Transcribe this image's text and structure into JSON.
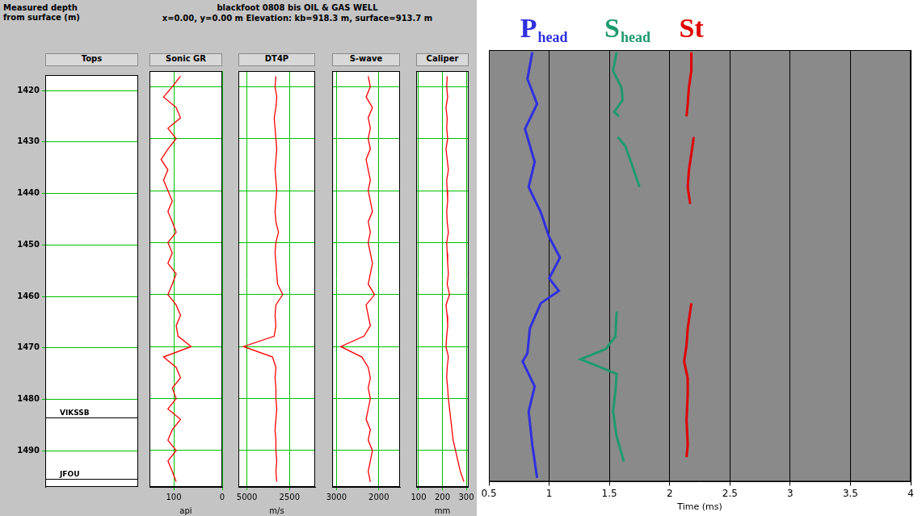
{
  "chart_data": [
    {
      "type": "well_log",
      "y_label": [
        "Measured depth",
        "from surface (m)"
      ],
      "title": "blackfoot 0808 bis OIL & GAS WELL",
      "subtitle": "x=0.00, y=0.00 m Elevation: kb=918.3 m, surface=913.7 m",
      "ylim": [
        1417,
        1497
      ],
      "yticks": [
        1420,
        1430,
        1440,
        1450,
        1460,
        1470,
        1480,
        1490
      ],
      "grid": true,
      "tops": {
        "name": "Tops",
        "labels": [
          "VIKSSB",
          "JFOU"
        ],
        "depths": [
          1483.5,
          1495.5
        ]
      },
      "depth": [
        1418,
        1420,
        1422,
        1424,
        1426,
        1428,
        1430,
        1432,
        1434,
        1436,
        1438,
        1440,
        1442,
        1444,
        1446,
        1448,
        1450,
        1452,
        1454,
        1456,
        1458,
        1460,
        1462,
        1464,
        1466,
        1468,
        1470,
        1472,
        1474,
        1476,
        1478,
        1480,
        1482,
        1484,
        1486,
        1488,
        1490,
        1492,
        1494,
        1496
      ],
      "tracks": [
        {
          "name": "Sonic GR",
          "unit": "api",
          "xlim": [
            150,
            0
          ],
          "xticks": [
            100,
            0
          ],
          "color": "#ff0000",
          "values": [
            86,
            103,
            121,
            95,
            86,
            112,
            95,
            112,
            126,
            112,
            121,
            112,
            103,
            112,
            103,
            95,
            112,
            103,
            112,
            95,
            103,
            112,
            95,
            86,
            95,
            91,
            64,
            121,
            95,
            86,
            103,
            95,
            112,
            86,
            103,
            112,
            95,
            112,
            103,
            95
          ]
        },
        {
          "name": "DT4P",
          "unit": "m/s",
          "xlim": [
            5500,
            1000
          ],
          "xticks": [
            5000,
            2500
          ],
          "color": "#ff0000",
          "values": [
            3300,
            3350,
            3250,
            3300,
            3400,
            3350,
            3300,
            3250,
            3300,
            3350,
            3300,
            3250,
            3300,
            3350,
            3300,
            3150,
            3300,
            3350,
            3300,
            3250,
            3200,
            2900,
            3300,
            3350,
            3300,
            3400,
            5200,
            3500,
            3300,
            3350,
            3300,
            3300,
            3250,
            3300,
            3350,
            3300,
            3300,
            3250,
            3300,
            3250
          ]
        },
        {
          "name": "S-wave",
          "xlim": [
            3100,
            1500
          ],
          "xticks": [
            3000,
            2000
          ],
          "color": "#ff0000",
          "values": [
            2250,
            2200,
            2300,
            2150,
            2250,
            2200,
            2250,
            2200,
            2300,
            2250,
            2200,
            2250,
            2200,
            2150,
            2250,
            2200,
            2250,
            2200,
            2150,
            2200,
            2250,
            2100,
            2300,
            2250,
            2200,
            2350,
            2900,
            2400,
            2250,
            2200,
            2250,
            2200,
            2250,
            2300,
            2200,
            2250,
            2150,
            2200,
            2250,
            2200
          ]
        },
        {
          "name": "Caliper",
          "unit": "mm",
          "xlim": [
            90,
            310
          ],
          "xticks": [
            100,
            200,
            300
          ],
          "color": "#ff0000",
          "values": [
            220,
            218,
            222,
            215,
            220,
            218,
            222,
            215,
            220,
            225,
            218,
            220,
            222,
            218,
            220,
            225,
            218,
            220,
            222,
            225,
            220,
            230,
            215,
            220,
            222,
            218,
            215,
            225,
            220,
            218,
            222,
            225,
            230,
            235,
            240,
            245,
            255,
            265,
            275,
            290
          ]
        }
      ]
    },
    {
      "type": "scatter",
      "x_label": "Time (ms)",
      "xlim": [
        0.5,
        4
      ],
      "xticks": [
        0.5,
        1,
        1.5,
        2,
        2.5,
        3,
        3.5,
        4
      ],
      "ylim": [
        1413.6,
        1493
      ],
      "tick_labels": "x",
      "grid": true,
      "series": [
        {
          "name": "P",
          "subscript": "head",
          "color": "#2f2fe0",
          "line_style": "solid",
          "x": [
            0.86,
            0.82,
            0.9,
            0.8,
            0.88,
            0.83,
            0.93,
            1.0,
            1.09,
            1.0,
            1.08,
            0.93,
            0.84,
            0.82,
            0.78,
            0.83,
            0.88,
            0.83,
            0.86,
            0.9
          ],
          "y": [
            1414.0,
            1418.9,
            1423.5,
            1428.1,
            1434.2,
            1438.8,
            1443.4,
            1448.0,
            1451.8,
            1455.6,
            1457.9,
            1460.2,
            1464.8,
            1469.4,
            1470.9,
            1473.2,
            1475.5,
            1480.1,
            1486.2,
            1492.3
          ]
        },
        {
          "name": "S",
          "subscript": "head",
          "color": "#1e9a6e",
          "line_style": "solid",
          "x": [
            1.56,
            1.53,
            1.6,
            1.61,
            1.54,
            1.58,
            null,
            1.57,
            1.63,
            1.68,
            1.75,
            null,
            1.56,
            1.55,
            1.47,
            1.26,
            1.4,
            1.56,
            1.55,
            1.53,
            1.56,
            1.62
          ],
          "y": [
            1414.0,
            1417.4,
            1420.5,
            1422.8,
            1425.0,
            1425.8,
            null,
            1429.6,
            1431.2,
            1434.2,
            1438.8,
            null,
            1461.7,
            1466.3,
            1468.6,
            1470.5,
            1471.7,
            1473.2,
            1476.3,
            1480.1,
            1484.7,
            1489.3
          ]
        },
        {
          "name": "St",
          "color": "#e00000",
          "line_style": "solid",
          "x": [
            2.18,
            2.18,
            2.16,
            2.15,
            2.14,
            null,
            2.2,
            2.18,
            2.16,
            2.15,
            2.17,
            null,
            2.18,
            2.15,
            2.14,
            2.12,
            2.15,
            2.15,
            2.14,
            2.15,
            2.14
          ],
          "y": [
            1414.0,
            1417.4,
            1420.5,
            1423.5,
            1425.8,
            null,
            1429.6,
            1432.7,
            1435.7,
            1438.8,
            1441.9,
            null,
            1460.2,
            1464.8,
            1467.9,
            1470.9,
            1474.0,
            1477.0,
            1481.6,
            1486.2,
            1488.5
          ]
        }
      ]
    }
  ]
}
